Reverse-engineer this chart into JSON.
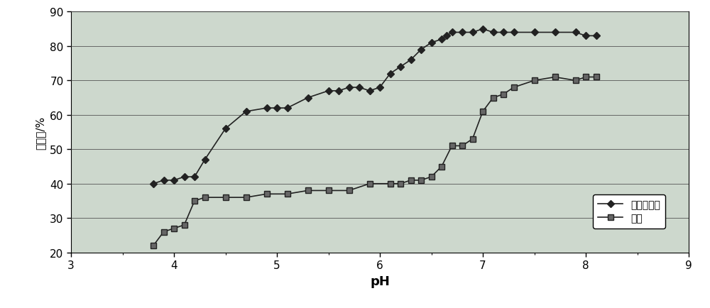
{
  "series1_label": "脱硫增效剂",
  "series2_label": "空白",
  "series1_x": [
    3.8,
    3.9,
    4.0,
    4.1,
    4.2,
    4.3,
    4.5,
    4.7,
    4.9,
    5.0,
    5.1,
    5.3,
    5.5,
    5.6,
    5.7,
    5.8,
    5.9,
    6.0,
    6.1,
    6.2,
    6.3,
    6.4,
    6.5,
    6.6,
    6.65,
    6.7,
    6.8,
    6.9,
    7.0,
    7.1,
    7.2,
    7.3,
    7.5,
    7.7,
    7.9,
    8.0,
    8.1
  ],
  "series1_y": [
    40,
    41,
    41,
    42,
    42,
    47,
    56,
    61,
    62,
    62,
    62,
    65,
    67,
    67,
    68,
    68,
    67,
    68,
    72,
    74,
    76,
    79,
    81,
    82,
    83,
    84,
    84,
    84,
    85,
    84,
    84,
    84,
    84,
    84,
    84,
    83,
    83
  ],
  "series2_x": [
    3.8,
    3.9,
    4.0,
    4.1,
    4.2,
    4.3,
    4.5,
    4.7,
    4.9,
    5.1,
    5.3,
    5.5,
    5.7,
    5.9,
    6.1,
    6.2,
    6.3,
    6.4,
    6.5,
    6.6,
    6.7,
    6.8,
    6.9,
    7.0,
    7.1,
    7.2,
    7.3,
    7.5,
    7.7,
    7.9,
    8.0,
    8.1
  ],
  "series2_y": [
    22,
    26,
    27,
    28,
    35,
    36,
    36,
    36,
    37,
    37,
    38,
    38,
    38,
    40,
    40,
    40,
    41,
    41,
    42,
    45,
    51,
    51,
    53,
    61,
    65,
    66,
    68,
    70,
    71,
    70,
    71,
    71
  ],
  "xlabel": "pH",
  "ylabel": "脱硫率/%",
  "xlim": [
    3,
    9
  ],
  "ylim": [
    20,
    90
  ],
  "xticks": [
    3,
    4,
    5,
    6,
    7,
    8,
    9
  ],
  "yticks": [
    20,
    30,
    40,
    50,
    60,
    70,
    80,
    90
  ],
  "line_color": "#222222",
  "bg_color": "#cdd8cd",
  "fig_color": "#ffffff",
  "marker1": "D",
  "marker2": "s",
  "markersize1": 5,
  "markersize2": 6,
  "linewidth": 1.2
}
